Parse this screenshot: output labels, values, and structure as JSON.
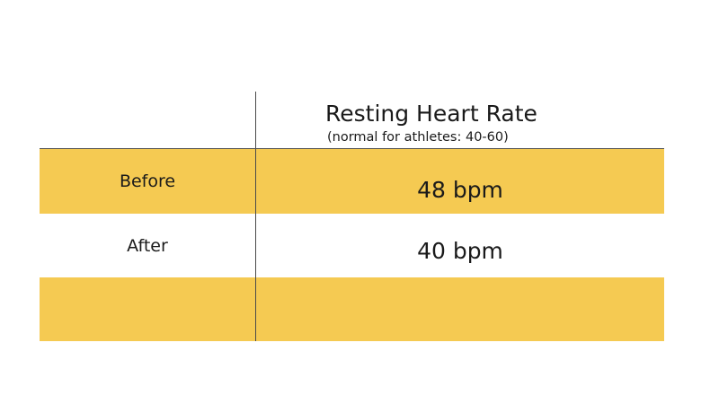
{
  "header": {
    "title": "Resting Heart Rate",
    "subtitle": "(normal for athletes: 40-60)"
  },
  "rows": [
    {
      "label": "Before",
      "value": "48 bpm",
      "highlight": true
    },
    {
      "label": "After",
      "value": "40 bpm",
      "highlight": false
    },
    {
      "label": "",
      "value": "",
      "highlight": true
    }
  ],
  "colors": {
    "band": "#f5ca52",
    "rule": "#4a4a4a"
  }
}
